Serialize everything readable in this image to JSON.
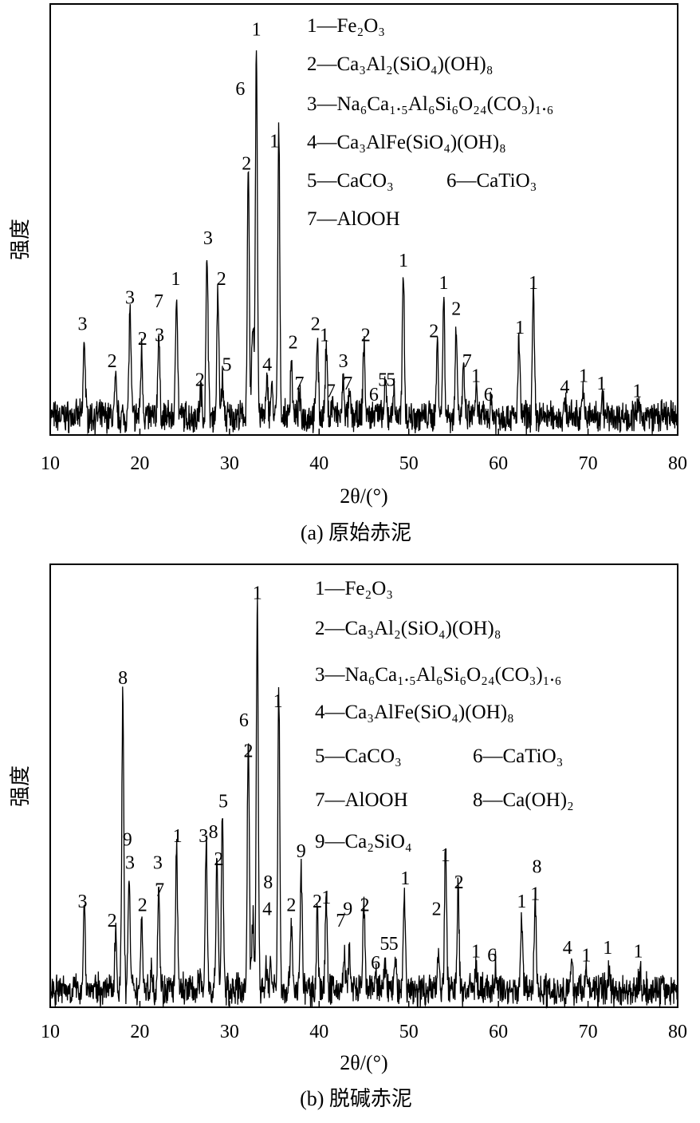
{
  "chart_data": [
    {
      "type": "line",
      "title": "(a) 原始赤泥",
      "xlabel": "2θ/(°)",
      "ylabel": "强度",
      "xlim": [
        10,
        80
      ],
      "xticks": [
        10,
        20,
        30,
        40,
        50,
        60,
        70,
        80
      ],
      "grid": false,
      "legend_placement": "top-right",
      "legend": [
        [
          "1—Fe₂O₃"
        ],
        [
          "2—Ca₃Al₂(SiO₄)(OH)₈"
        ],
        [
          "3—Na₆Ca₁.₅Al₆Si₆O₂₄(CO₃)₁.₆"
        ],
        [
          "4—Ca₃AlFe(SiO₄)(OH)₈"
        ],
        [
          "5—CaCO₃",
          "6—CaTiO₃"
        ],
        [
          "7—AlOOH"
        ]
      ],
      "peaks": [
        [
          13.8,
          21
        ],
        [
          17.3,
          9
        ],
        [
          18.9,
          29
        ],
        [
          20.2,
          18
        ],
        [
          22.1,
          22
        ],
        [
          24.1,
          35
        ],
        [
          26.8,
          7
        ],
        [
          27.5,
          45
        ],
        [
          28.7,
          33
        ],
        [
          29.2,
          10
        ],
        [
          32.1,
          65
        ],
        [
          32.6,
          26
        ],
        [
          33.0,
          100
        ],
        [
          34.2,
          9
        ],
        [
          34.7,
          8
        ],
        [
          35.5,
          76
        ],
        [
          36.9,
          16
        ],
        [
          37.8,
          5
        ],
        [
          39.8,
          22
        ],
        [
          40.8,
          18
        ],
        [
          41.5,
          4
        ],
        [
          42.7,
          9
        ],
        [
          43.4,
          5
        ],
        [
          45.0,
          20
        ],
        [
          46.3,
          4
        ],
        [
          47.4,
          8
        ],
        [
          48.3,
          7
        ],
        [
          49.4,
          39
        ],
        [
          53.2,
          20
        ],
        [
          53.9,
          32
        ],
        [
          55.3,
          25
        ],
        [
          56.1,
          12
        ],
        [
          57.5,
          7
        ],
        [
          59.2,
          4
        ],
        [
          62.3,
          20
        ],
        [
          63.9,
          33
        ],
        [
          67.5,
          4
        ],
        [
          69.4,
          7
        ],
        [
          71.6,
          6
        ],
        [
          75.6,
          3
        ]
      ],
      "annotations": [
        [
          "3",
          13.6,
          25
        ],
        [
          "2",
          16.9,
          15
        ],
        [
          "3",
          18.9,
          32
        ],
        [
          "2",
          20.3,
          21
        ],
        [
          "7",
          22.1,
          31
        ],
        [
          "3",
          22.2,
          22
        ],
        [
          "1",
          24.0,
          37
        ],
        [
          "2",
          26.7,
          10
        ],
        [
          "3",
          27.6,
          48
        ],
        [
          "2",
          29.1,
          37
        ],
        [
          "5",
          29.7,
          14
        ],
        [
          "2",
          31.9,
          68
        ],
        [
          "6",
          31.2,
          88
        ],
        [
          "1",
          33.0,
          104
        ],
        [
          "1",
          35.0,
          74
        ],
        [
          "4",
          34.2,
          14
        ],
        [
          "2",
          37.1,
          20
        ],
        [
          "7",
          37.8,
          9
        ],
        [
          "2",
          39.6,
          25
        ],
        [
          "1",
          40.6,
          22
        ],
        [
          "7",
          41.3,
          7
        ],
        [
          "3",
          42.7,
          15
        ],
        [
          "7",
          43.2,
          9
        ],
        [
          "2",
          45.2,
          22
        ],
        [
          "6",
          46.1,
          6
        ],
        [
          "5",
          47.1,
          10
        ],
        [
          "5",
          48.0,
          10
        ],
        [
          "1",
          49.4,
          42
        ],
        [
          "2",
          52.8,
          23
        ],
        [
          "1",
          53.9,
          36
        ],
        [
          "2",
          55.3,
          29
        ],
        [
          "7",
          56.5,
          15
        ],
        [
          "1",
          57.5,
          11
        ],
        [
          "6",
          58.9,
          6
        ],
        [
          "1",
          62.4,
          24
        ],
        [
          "1",
          63.9,
          36
        ],
        [
          "4",
          67.4,
          8
        ],
        [
          "1",
          69.5,
          11
        ],
        [
          "1",
          71.5,
          9
        ],
        [
          "1",
          75.5,
          7
        ]
      ]
    },
    {
      "type": "line",
      "title": "(b) 脱碱赤泥",
      "xlabel": "2θ/(°)",
      "ylabel": "强度",
      "xlim": [
        10,
        80
      ],
      "xticks": [
        10,
        20,
        30,
        40,
        50,
        60,
        70,
        80
      ],
      "grid": false,
      "legend_placement": "top-right",
      "legend": [
        [
          "1—Fe₂O₃"
        ],
        [
          "2—Ca₃Al₂(SiO₄)(OH)₈"
        ],
        [
          "3—Na₆Ca₁.₅Al₆Si₆O₂₄(CO₃)₁.₆"
        ],
        [
          "4—Ca₃AlFe(SiO₄)(OH)₈"
        ],
        [
          "5—CaCO₃",
          "6—CaTiO₃"
        ],
        [
          "7—AlOOH",
          "8—Ca(OH)₂"
        ],
        [
          "9—Ca₂SiO₄"
        ]
      ],
      "peaks": [
        [
          13.8,
          22
        ],
        [
          17.3,
          16
        ],
        [
          18.1,
          77
        ],
        [
          18.8,
          29
        ],
        [
          20.2,
          19
        ],
        [
          21.3,
          5
        ],
        [
          22.1,
          28
        ],
        [
          24.1,
          36
        ],
        [
          26.7,
          3
        ],
        [
          27.4,
          39
        ],
        [
          28.6,
          34
        ],
        [
          29.2,
          45
        ],
        [
          32.1,
          66
        ],
        [
          32.6,
          19
        ],
        [
          33.1,
          100
        ],
        [
          34.1,
          6
        ],
        [
          34.6,
          6
        ],
        [
          35.5,
          78
        ],
        [
          36.9,
          19
        ],
        [
          38.0,
          32
        ],
        [
          39.8,
          20
        ],
        [
          40.8,
          23
        ],
        [
          42.8,
          9
        ],
        [
          43.4,
          10
        ],
        [
          45.0,
          22
        ],
        [
          46.3,
          4
        ],
        [
          47.4,
          7
        ],
        [
          48.5,
          7
        ],
        [
          49.5,
          26
        ],
        [
          53.3,
          11
        ],
        [
          54.1,
          38
        ],
        [
          55.5,
          26
        ],
        [
          57.5,
          6
        ],
        [
          59.7,
          6
        ],
        [
          62.6,
          19
        ],
        [
          64.1,
          24
        ],
        [
          68.2,
          6
        ],
        [
          69.8,
          5
        ],
        [
          72.3,
          5
        ],
        [
          75.8,
          4
        ]
      ],
      "annotations": [
        [
          "3",
          13.6,
          23
        ],
        [
          "2",
          16.9,
          18
        ],
        [
          "8",
          18.1,
          81
        ],
        [
          "9",
          18.6,
          39
        ],
        [
          "3",
          18.9,
          33
        ],
        [
          "2",
          20.3,
          22
        ],
        [
          "3",
          22.0,
          33
        ],
        [
          "7",
          22.2,
          26
        ],
        [
          "1",
          24.2,
          40
        ],
        [
          "3",
          27.1,
          40
        ],
        [
          "8",
          28.2,
          41
        ],
        [
          "2",
          28.8,
          34
        ],
        [
          "5",
          29.3,
          49
        ],
        [
          "6",
          31.6,
          70
        ],
        [
          "2",
          32.1,
          62
        ],
        [
          "1",
          33.1,
          103
        ],
        [
          "1",
          35.4,
          75
        ],
        [
          "8",
          34.3,
          28
        ],
        [
          "4",
          34.2,
          21
        ],
        [
          "2",
          36.9,
          22
        ],
        [
          "9",
          38.0,
          36
        ],
        [
          "2",
          39.8,
          23
        ],
        [
          "1",
          40.8,
          24
        ],
        [
          "7",
          42.4,
          18
        ],
        [
          "9",
          43.2,
          21
        ],
        [
          "2",
          45.1,
          22
        ],
        [
          "6",
          46.3,
          7
        ],
        [
          "5",
          47.3,
          12
        ],
        [
          "5",
          48.3,
          12
        ],
        [
          "1",
          49.6,
          29
        ],
        [
          "2",
          53.1,
          21
        ],
        [
          "1",
          54.1,
          35
        ],
        [
          "2",
          55.6,
          28
        ],
        [
          "1",
          57.5,
          10
        ],
        [
          "6",
          59.3,
          9
        ],
        [
          "1",
          62.6,
          23
        ],
        [
          "8",
          64.3,
          32
        ],
        [
          "1",
          64.1,
          25
        ],
        [
          "4",
          67.7,
          11
        ],
        [
          "1",
          69.8,
          9
        ],
        [
          "1",
          72.2,
          11
        ],
        [
          "1",
          75.6,
          10
        ]
      ]
    }
  ]
}
